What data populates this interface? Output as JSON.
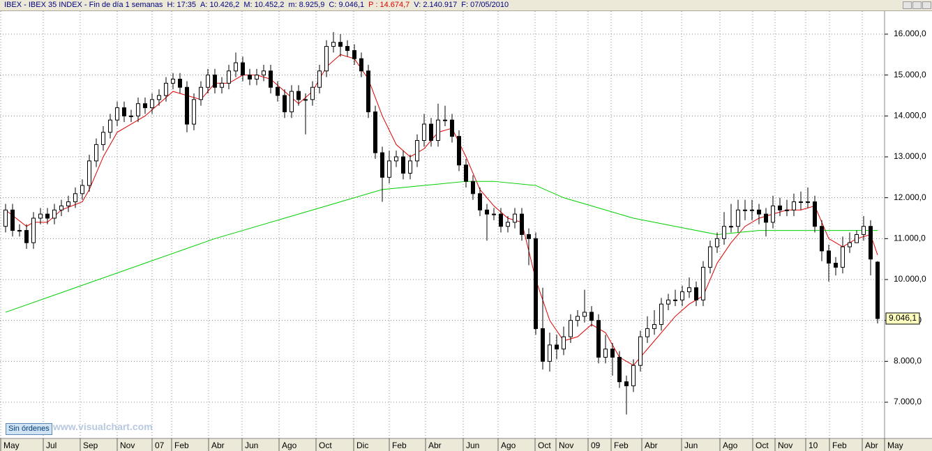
{
  "chart_data": {
    "type": "candlestick",
    "header": {
      "title": "IBEX - IBEX 35 INDEX - Fin de día 1 semanas",
      "fields": [
        {
          "text": "H: 17:35"
        },
        {
          "text": "A: 10.426,2"
        },
        {
          "text": "M: 10.452,2"
        },
        {
          "text": "m: 8.925,9"
        },
        {
          "text": "C: 9.046,1"
        },
        {
          "text": "P : 14.674,7",
          "color": "#e00000"
        },
        {
          "text": "V: 2.140.917"
        },
        {
          "text": "F: 07/05/2010"
        }
      ]
    },
    "button": "Sin órdenes",
    "watermark": "www.visualchart.com",
    "last_value_label": "9.046,1",
    "ylim": [
      6131,
      16562
    ],
    "yticks": [
      {
        "value": 7000,
        "label": "7.000,0"
      },
      {
        "value": 8000,
        "label": "8.000,0"
      },
      {
        "value": 9000,
        "label": "9.000,0"
      },
      {
        "value": 10000,
        "label": "10.000,0"
      },
      {
        "value": 11000,
        "label": "11.000,0"
      },
      {
        "value": 12000,
        "label": "12.000,0"
      },
      {
        "value": 13000,
        "label": "13.000,0"
      },
      {
        "value": 14000,
        "label": "14.000,0"
      },
      {
        "value": 15000,
        "label": "15.000,0"
      },
      {
        "value": 16000,
        "label": "16.000,0"
      }
    ],
    "xticks": [
      {
        "value": -0.7,
        "label": "May"
      },
      {
        "value": 5.4,
        "label": "Jul"
      },
      {
        "value": 10.7,
        "label": "Sep"
      },
      {
        "value": 16,
        "label": "Nov"
      },
      {
        "value": 21,
        "label": "07"
      },
      {
        "value": 23.8,
        "label": "Feb"
      },
      {
        "value": 29.1,
        "label": "Abr"
      },
      {
        "value": 33.9,
        "label": "Jun"
      },
      {
        "value": 39.2,
        "label": "Ago"
      },
      {
        "value": 44.5,
        "label": "Oct"
      },
      {
        "value": 49.9,
        "label": "Dic"
      },
      {
        "value": 55,
        "label": "Feb"
      },
      {
        "value": 60.2,
        "label": "Abr"
      },
      {
        "value": 65.6,
        "label": "Jun"
      },
      {
        "value": 70.6,
        "label": "Ago"
      },
      {
        "value": 75.9,
        "label": "Oct"
      },
      {
        "value": 78.9,
        "label": "Nov"
      },
      {
        "value": 83.5,
        "label": "09"
      },
      {
        "value": 86.8,
        "label": "Feb"
      },
      {
        "value": 91.2,
        "label": "Abr"
      },
      {
        "value": 96.9,
        "label": "Jun"
      },
      {
        "value": 102.4,
        "label": "Ago"
      },
      {
        "value": 107.1,
        "label": "Oct"
      },
      {
        "value": 110.3,
        "label": "Nov"
      },
      {
        "value": 114.7,
        "label": "10"
      },
      {
        "value": 118.1,
        "label": "Feb"
      },
      {
        "value": 122.8,
        "label": "Abr"
      },
      {
        "value": 126,
        "label": "May"
      }
    ],
    "grid": true,
    "candles": {
      "open": [
        11300,
        11700,
        11200,
        11200,
        10900,
        11500,
        11600,
        11500,
        11700,
        11800,
        11900,
        12100,
        12300,
        12900,
        13300,
        13600,
        13900,
        14200,
        14000,
        14000,
        14300,
        14200,
        14400,
        14500,
        14800,
        14900,
        14700,
        13800,
        14400,
        14700,
        15000,
        14700,
        14800,
        15100,
        15300,
        15000,
        14900,
        15000,
        15100,
        14700,
        14500,
        14100,
        14600,
        14400,
        14400,
        14700,
        15100,
        15700,
        15800,
        15700,
        15600,
        15400,
        15100,
        14100,
        13100,
        12500,
        12900,
        13000,
        12600,
        12900,
        13400,
        13800,
        13400,
        13900,
        13900,
        13500,
        12800,
        12400,
        12100,
        11700,
        11600,
        11600,
        11300,
        11400,
        11600,
        11100,
        11000,
        8800,
        8000,
        8400,
        8300,
        8600,
        9000,
        9100,
        9200,
        9000,
        8100,
        8300,
        8100,
        7500,
        7400,
        7900,
        8600,
        8800,
        8900,
        9400,
        9500,
        9500,
        9700,
        9800,
        9500,
        10300,
        10800,
        11000,
        11300,
        11300,
        11700,
        11700,
        11700,
        11600,
        11400,
        11800,
        11700,
        11700,
        11900,
        11900,
        11900,
        11300,
        10700,
        10400,
        10300,
        10800,
        10900,
        11100,
        11300,
        10426.2
      ],
      "high": [
        11850,
        11850,
        11350,
        11350,
        11650,
        11750,
        11750,
        11850,
        11950,
        12050,
        12250,
        12450,
        13050,
        13450,
        13750,
        14050,
        14350,
        14350,
        14150,
        14450,
        14450,
        14550,
        14650,
        14950,
        15050,
        15050,
        14850,
        14550,
        14850,
        15150,
        15150,
        14950,
        15250,
        15550,
        15450,
        15150,
        15150,
        15250,
        15250,
        14850,
        14650,
        14750,
        14750,
        14550,
        14850,
        15250,
        15850,
        16050,
        16000,
        15850,
        15750,
        15550,
        15250,
        14250,
        13250,
        13150,
        13150,
        13150,
        13050,
        13550,
        14050,
        13950,
        14300,
        14250,
        14050,
        13650,
        12950,
        12550,
        12250,
        11850,
        11750,
        11750,
        11550,
        11750,
        11750,
        11250,
        11150,
        9800,
        8700,
        8650,
        8850,
        9150,
        9250,
        9750,
        9350,
        9150,
        8650,
        8450,
        8250,
        7650,
        8050,
        8750,
        9100,
        9250,
        9550,
        9650,
        9750,
        9850,
        10050,
        9950,
        10450,
        10950,
        11150,
        11650,
        11850,
        11950,
        11950,
        11950,
        11850,
        11750,
        12050,
        12000,
        11950,
        12100,
        12150,
        12250,
        12050,
        11450,
        10850,
        10550,
        11050,
        11150,
        11200,
        11550,
        11450,
        10452.2
      ],
      "low": [
        11150,
        11050,
        11050,
        10750,
        10750,
        11350,
        11350,
        11350,
        11550,
        11650,
        11750,
        11950,
        12150,
        12750,
        13150,
        13450,
        13750,
        13850,
        13850,
        13850,
        14050,
        14050,
        14250,
        14350,
        14650,
        14550,
        13600,
        13650,
        14250,
        14550,
        14550,
        14550,
        14650,
        14950,
        14850,
        14750,
        14750,
        14850,
        14550,
        14350,
        13950,
        13950,
        14250,
        13550,
        14250,
        14550,
        14950,
        15550,
        15450,
        15450,
        15250,
        14950,
        13950,
        12950,
        11900,
        12350,
        12750,
        12450,
        12450,
        12750,
        13250,
        13250,
        13250,
        13750,
        13350,
        12650,
        12250,
        11950,
        11550,
        10950,
        11450,
        11150,
        11150,
        11250,
        10950,
        10350,
        8650,
        7800,
        7750,
        8050,
        8150,
        8450,
        8850,
        8950,
        8850,
        7950,
        7950,
        7650,
        7350,
        6700,
        7250,
        7750,
        8450,
        8650,
        8750,
        9250,
        9350,
        9350,
        9550,
        9350,
        9350,
        10150,
        10650,
        10850,
        11150,
        11150,
        11450,
        11450,
        11350,
        11050,
        11250,
        11550,
        11550,
        11550,
        11700,
        11750,
        11150,
        10450,
        9950,
        10100,
        10150,
        10650,
        10950,
        10950,
        10100,
        8925.9
      ],
      "close": [
        11700,
        11200,
        11200,
        10900,
        11500,
        11600,
        11500,
        11700,
        11800,
        11900,
        12100,
        12300,
        12900,
        13300,
        13600,
        13900,
        14200,
        14000,
        14000,
        14300,
        14200,
        14400,
        14500,
        14800,
        14900,
        14700,
        13800,
        14400,
        14700,
        15000,
        14700,
        14800,
        15100,
        15300,
        15000,
        14900,
        15000,
        15100,
        14700,
        14500,
        14100,
        14600,
        14400,
        14400,
        14700,
        15100,
        15700,
        15800,
        15700,
        15600,
        15400,
        15100,
        14100,
        13100,
        12500,
        12900,
        13000,
        12600,
        12900,
        13400,
        13800,
        13400,
        13900,
        13900,
        13500,
        12800,
        12400,
        12100,
        11700,
        11600,
        11600,
        11300,
        11400,
        11600,
        11100,
        11000,
        8800,
        8000,
        8400,
        8300,
        8600,
        9000,
        9100,
        9200,
        9000,
        8100,
        8300,
        8100,
        7500,
        7400,
        7900,
        8600,
        8800,
        8900,
        9400,
        9500,
        9500,
        9700,
        9800,
        9500,
        10300,
        10800,
        11000,
        11300,
        11300,
        11700,
        11700,
        11700,
        11600,
        11400,
        11800,
        11700,
        11700,
        11900,
        11900,
        11900,
        11300,
        10700,
        10400,
        10300,
        10800,
        10900,
        11100,
        11300,
        10500,
        9046.1
      ]
    },
    "overlays": [
      {
        "color": "#e00000",
        "x": [
          0,
          3,
          4,
          6,
          8,
          11,
          12,
          14,
          16,
          18,
          20,
          22,
          24,
          26,
          28,
          30,
          32,
          34,
          36,
          38,
          40,
          42,
          44,
          46,
          48,
          50,
          52,
          54,
          56,
          58,
          60,
          62,
          64,
          66,
          68,
          70,
          72,
          74,
          76,
          78,
          80,
          82,
          84,
          86,
          88,
          90,
          92,
          94,
          96,
          98,
          100,
          102,
          104,
          106,
          108,
          110,
          112,
          114,
          116,
          118,
          120,
          122,
          124,
          125
        ],
        "values": [
          11700,
          11300,
          11400,
          11400,
          11700,
          11900,
          12200,
          13000,
          13600,
          13800,
          14000,
          14300,
          14600,
          14500,
          14400,
          14800,
          14800,
          15000,
          15000,
          14900,
          14600,
          14300,
          14600,
          15200,
          15500,
          15400,
          14900,
          14000,
          13300,
          13000,
          13200,
          13600,
          13700,
          13000,
          12200,
          11800,
          11500,
          11400,
          10000,
          9000,
          8500,
          8600,
          8900,
          8700,
          8100,
          7900,
          8300,
          8700,
          9100,
          9400,
          9600,
          10400,
          10900,
          11300,
          11500,
          11600,
          11700,
          11700,
          11800,
          11000,
          10800,
          11000,
          11100,
          10600
        ]
      },
      {
        "color": "#00d000",
        "x": [
          0,
          10,
          20,
          30,
          40,
          50,
          54,
          60,
          66,
          70,
          76,
          80,
          86,
          90,
          96,
          102,
          108,
          116,
          125
        ],
        "values": [
          9200,
          9800,
          10400,
          11000,
          11500,
          12000,
          12200,
          12300,
          12400,
          12400,
          12300,
          12000,
          11700,
          11500,
          11300,
          11100,
          11200,
          11200,
          11200
        ]
      }
    ]
  }
}
